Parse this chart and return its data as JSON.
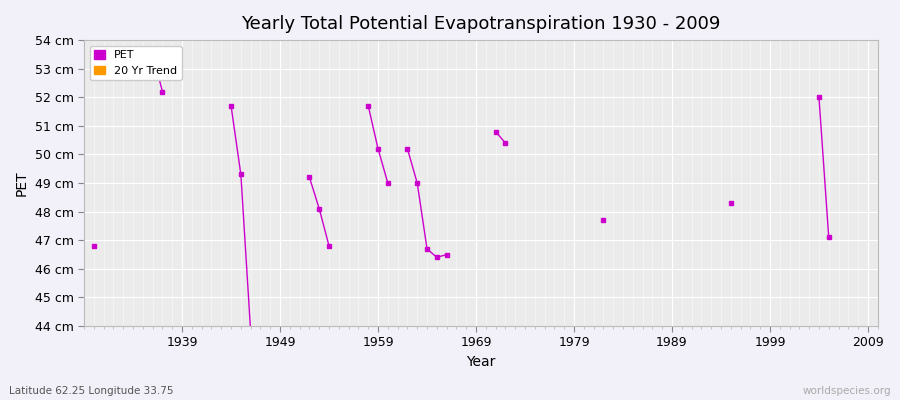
{
  "title": "Yearly Total Potential Evapotranspiration 1930 - 2009",
  "xlabel": "Year",
  "ylabel": "PET",
  "subtitle": "Latitude 62.25 Longitude 33.75",
  "watermark": "worldspecies.org",
  "background_color": "#f2f0f8",
  "plot_bg_color": "#ebebeb",
  "grid_color": "#ffffff",
  "ylim": [
    44,
    54
  ],
  "ytick_labels": [
    "44 cm",
    "45 cm",
    "46 cm",
    "47 cm",
    "48 cm",
    "49 cm",
    "50 cm",
    "51 cm",
    "52 cm",
    "53 cm",
    "54 cm"
  ],
  "ytick_values": [
    44,
    45,
    46,
    47,
    48,
    49,
    50,
    51,
    52,
    53,
    54
  ],
  "xtick_values": [
    1939,
    1949,
    1959,
    1969,
    1979,
    1989,
    1999,
    2009
  ],
  "xlim": [
    1929,
    2010
  ],
  "pet_data": {
    "1930": 46.8,
    "1936": 53.5,
    "1937": 52.2,
    "1944": 51.7,
    "1945": 49.3,
    "1946": 43.8,
    "1952": 49.2,
    "1953": 48.1,
    "1954": 46.8,
    "1958": 51.7,
    "1959": 50.2,
    "1960": 49.0,
    "1962": 50.2,
    "1963": 49.0,
    "1964": 46.7,
    "1965": 46.4,
    "1966": 46.5,
    "1971": 50.8,
    "1972": 50.4,
    "1982": 47.7,
    "1995": 48.3,
    "2004": 52.0,
    "2005": 47.1
  },
  "pet_color": "#cc00cc",
  "trend_color": "#ff9900",
  "legend_bg": "#ffffff",
  "title_fontsize": 13,
  "axis_fontsize": 10,
  "tick_fontsize": 9
}
